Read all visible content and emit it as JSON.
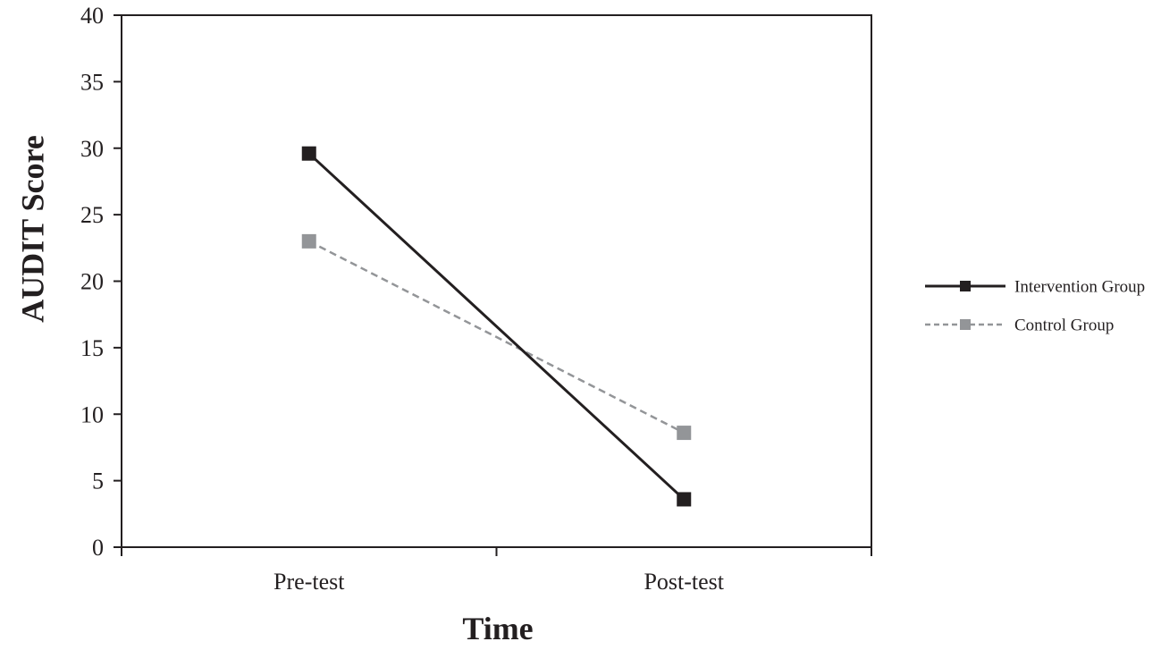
{
  "chart_data": {
    "type": "line",
    "categories": [
      "Pre-test",
      "Post-test"
    ],
    "series": [
      {
        "name": "Intervention Group",
        "values": [
          29.6,
          3.6
        ],
        "color": "#231f20",
        "dash": "solid"
      },
      {
        "name": "Control Group",
        "values": [
          23.0,
          8.6
        ],
        "color": "#939598",
        "dash": "dashed"
      }
    ],
    "xlabel": "Time",
    "ylabel": "AUDIT Score",
    "ylim": [
      0,
      40
    ],
    "yticks": [
      0,
      5,
      10,
      15,
      20,
      25,
      30,
      35,
      40
    ],
    "grid": false,
    "legend_position": "right",
    "marker": "square"
  }
}
